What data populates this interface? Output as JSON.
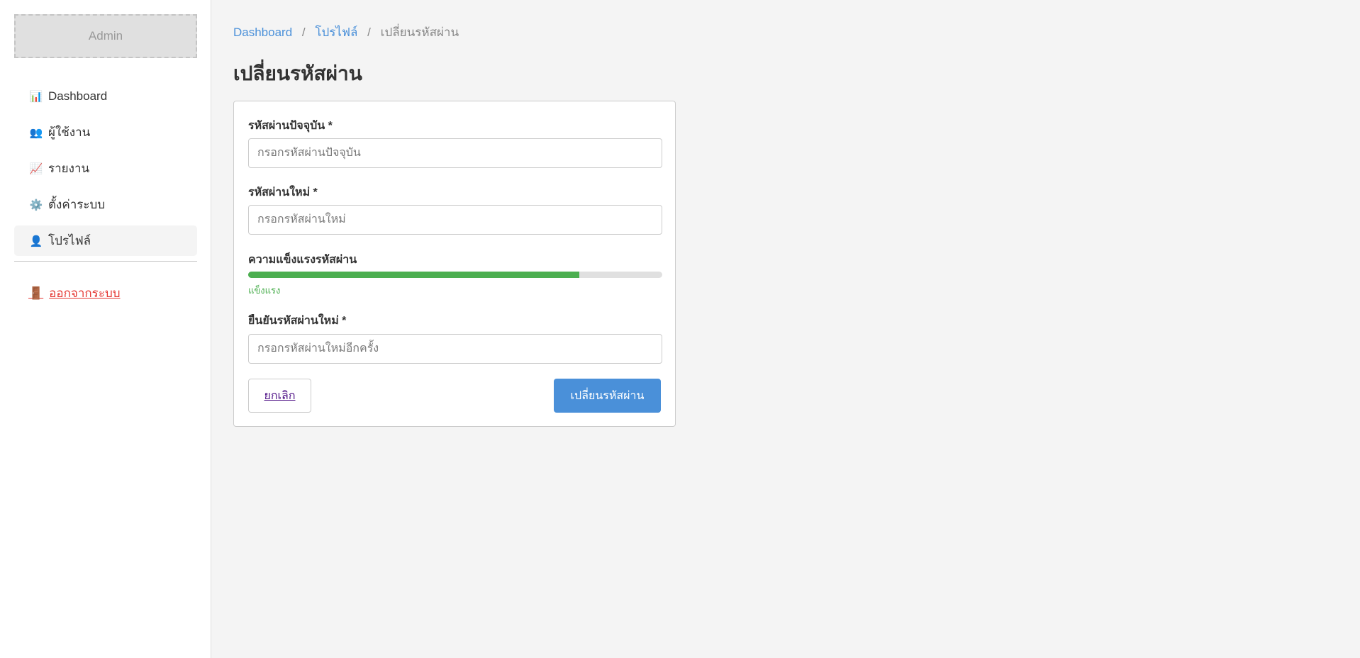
{
  "sidebar": {
    "logo": "Admin",
    "items": [
      {
        "label": "Dashboard",
        "icon": "📊"
      },
      {
        "label": "ผู้ใช้งาน",
        "icon": "👥"
      },
      {
        "label": "รายงาน",
        "icon": "📈"
      },
      {
        "label": "ตั้งค่าระบบ",
        "icon": "⚙️"
      },
      {
        "label": "โปรไฟล์",
        "icon": "👤",
        "active": true
      }
    ],
    "logout": {
      "label": "ออกจากระบบ",
      "icon": "🚪"
    }
  },
  "breadcrumb": {
    "items": [
      "Dashboard",
      "โปรไฟล์"
    ],
    "current": "เปลี่ยนรหัสผ่าน",
    "separator": "/"
  },
  "page_title": "เปลี่ยนรหัสผ่าน",
  "form": {
    "current": {
      "label": "รหัสผ่านปัจจุบัน *",
      "placeholder": "กรอกรหัสผ่านปัจจุบัน",
      "value": ""
    },
    "new": {
      "label": "รหัสผ่านใหม่ *",
      "placeholder": "กรอกรหัสผ่านใหม่",
      "value": ""
    },
    "strength": {
      "label": "ความแข็งแรงรหัสผ่าน",
      "percent": 80,
      "text": "แข็งแรง",
      "color": "#4caf50"
    },
    "confirm": {
      "label": "ยืนยันรหัสผ่านใหม่ *",
      "placeholder": "กรอกรหัสผ่านใหม่อีกครั้ง",
      "value": ""
    },
    "cancel_label": "ยกเลิก",
    "submit_label": "เปลี่ยนรหัสผ่าน"
  },
  "colors": {
    "accent": "#4a90d9",
    "danger": "#e53935",
    "success": "#4caf50"
  }
}
